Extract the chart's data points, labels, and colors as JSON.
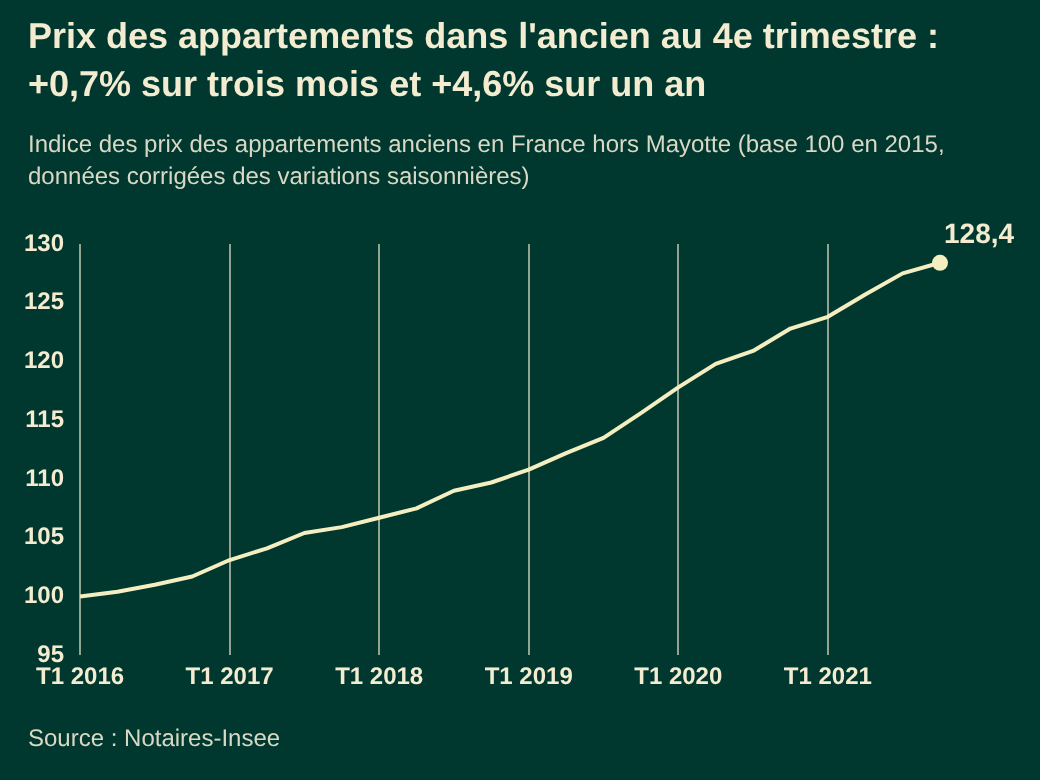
{
  "chart_data": {
    "type": "line",
    "title": "Prix des appartements dans l'ancien au 4e trimestre : +0,7% sur trois mois et +4,6% sur un an",
    "subtitle": "Indice des prix des appartements anciens en France hors Mayotte (base 100 en 2015, données corrigées des variations saisonnières)",
    "categories": [
      "T1 2016",
      null,
      null,
      null,
      "T1 2017",
      null,
      null,
      null,
      "T1 2018",
      null,
      null,
      null,
      "T1 2019",
      null,
      null,
      null,
      "T1 2020",
      null,
      null,
      null,
      "T1 2021",
      null,
      null,
      null
    ],
    "series": [
      {
        "color": "#f5eec0",
        "values": [
          100.0,
          100.4,
          101.0,
          101.7,
          103.1,
          104.1,
          105.4,
          105.9,
          106.7,
          107.5,
          109.0,
          109.7,
          110.8,
          112.2,
          113.5,
          115.6,
          117.8,
          119.8,
          120.9,
          122.8,
          123.8,
          125.7,
          127.5,
          128.4
        ],
        "value_labels": [
          null,
          null,
          null,
          null,
          null,
          null,
          null,
          null,
          null,
          null,
          null,
          null,
          null,
          null,
          null,
          null,
          null,
          null,
          null,
          null,
          null,
          null,
          null,
          "128,4"
        ]
      }
    ],
    "ylim": [
      95,
      130
    ],
    "yticks": [
      95,
      100,
      105,
      110,
      115,
      120,
      125,
      130
    ],
    "grid": "x",
    "annotations": [
      "Source : Notaires-Insee"
    ]
  }
}
